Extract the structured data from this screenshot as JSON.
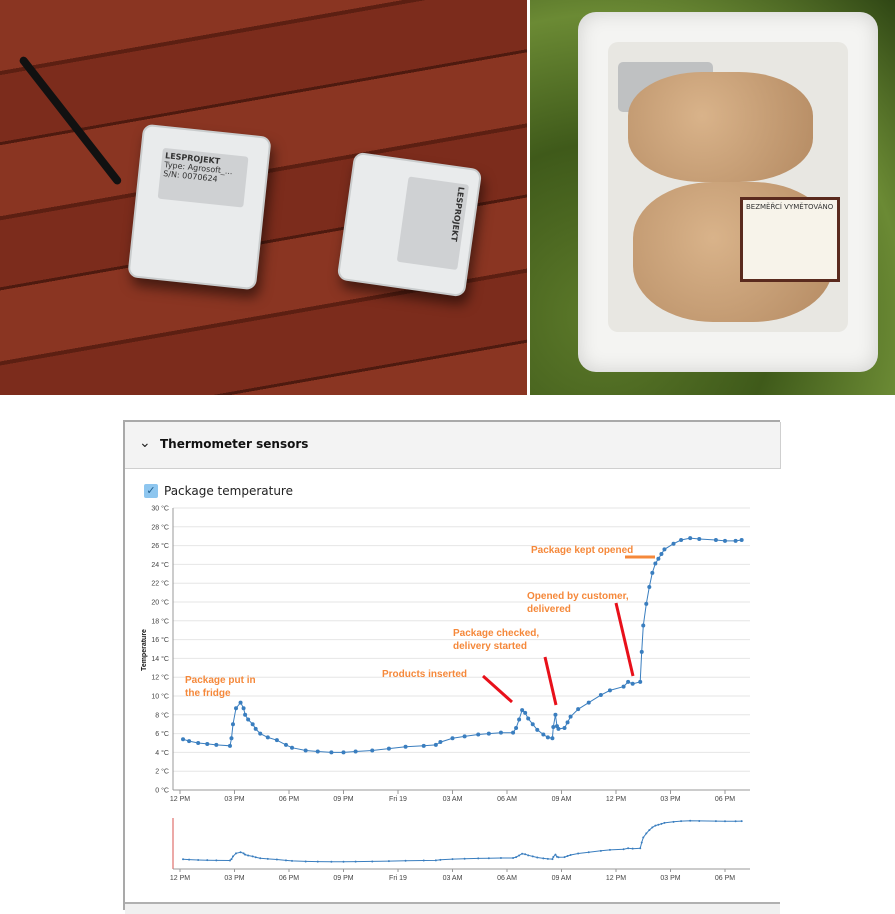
{
  "photos": {
    "left": {
      "device_brand": "LESPROJEKT",
      "device_type": "Type: Agrosoft_...",
      "device_sn": "S/N: 0070624"
    },
    "right": {
      "product_label": "BEZMĚŘCÍ VYMĚTOVÁNO"
    }
  },
  "panel": {
    "title": "Thermometer sensors",
    "collapse_icon": "chevron-down-icon"
  },
  "legend": {
    "label": "Package temperature",
    "checked": true,
    "checkbox_color": "#8ec6ef"
  },
  "annotations": {
    "fridge": [
      "Package put in",
      "the fridge"
    ],
    "inserted": "Products inserted",
    "checked": [
      "Package checked,",
      "delivery started"
    ],
    "opened": [
      "Opened by customer,",
      "delivered"
    ],
    "kept": "Package kept opened",
    "text_color": "#f5883a",
    "arrow_color": "#e8101a"
  },
  "chart_data": {
    "type": "line",
    "title": "",
    "xlabel": "",
    "ylabel": "Temperature",
    "ylim": [
      0,
      30
    ],
    "yticks": [
      "0 °C",
      "2 °C",
      "4 °C",
      "6 °C",
      "8 °C",
      "10 °C",
      "12 °C",
      "14 °C",
      "16 °C",
      "18 °C",
      "20 °C",
      "22 °C",
      "24 °C",
      "26 °C",
      "28 °C",
      "30 °C"
    ],
    "xlim": [
      "Thu 12:00",
      "Fri 19:30"
    ],
    "xticks": [
      "12 PM",
      "03 PM",
      "06 PM",
      "09 PM",
      "Fri 19",
      "03 AM",
      "06 AM",
      "09 AM",
      "12 PM",
      "03 PM",
      "06 PM"
    ],
    "grid": true,
    "series_color": "#3a7ebf",
    "series": [
      {
        "name": "Package temperature",
        "points": [
          [
            "Thu 12:10",
            5.4
          ],
          [
            "Thu 12:30",
            5.2
          ],
          [
            "Thu 13:00",
            5.0
          ],
          [
            "Thu 13:30",
            4.9
          ],
          [
            "Thu 14:00",
            4.8
          ],
          [
            "Thu 14:45",
            4.7
          ],
          [
            "Thu 14:50",
            5.5
          ],
          [
            "Thu 14:55",
            7.0
          ],
          [
            "Thu 15:05",
            8.7
          ],
          [
            "Thu 15:20",
            9.3
          ],
          [
            "Thu 15:30",
            8.7
          ],
          [
            "Thu 15:35",
            8.0
          ],
          [
            "Thu 15:45",
            7.5
          ],
          [
            "Thu 16:00",
            7.0
          ],
          [
            "Thu 16:10",
            6.5
          ],
          [
            "Thu 16:25",
            6.0
          ],
          [
            "Thu 16:50",
            5.6
          ],
          [
            "Thu 17:20",
            5.3
          ],
          [
            "Thu 17:50",
            4.8
          ],
          [
            "Thu 18:10",
            4.5
          ],
          [
            "Thu 18:55",
            4.2
          ],
          [
            "Thu 19:35",
            4.1
          ],
          [
            "Thu 20:20",
            4.0
          ],
          [
            "Thu 21:00",
            4.0
          ],
          [
            "Thu 21:40",
            4.1
          ],
          [
            "Thu 22:35",
            4.2
          ],
          [
            "Thu 23:30",
            4.4
          ],
          [
            "Fri 00:25",
            4.6
          ],
          [
            "Fri 01:25",
            4.7
          ],
          [
            "Fri 02:05",
            4.8
          ],
          [
            "Fri 02:20",
            5.1
          ],
          [
            "Fri 03:00",
            5.5
          ],
          [
            "Fri 03:40",
            5.7
          ],
          [
            "Fri 04:25",
            5.9
          ],
          [
            "Fri 05:00",
            6.0
          ],
          [
            "Fri 05:40",
            6.1
          ],
          [
            "Fri 06:20",
            6.1
          ],
          [
            "Fri 06:30",
            6.6
          ],
          [
            "Fri 06:40",
            7.5
          ],
          [
            "Fri 06:50",
            8.5
          ],
          [
            "Fri 07:00",
            8.2
          ],
          [
            "Fri 07:10",
            7.6
          ],
          [
            "Fri 07:25",
            7.0
          ],
          [
            "Fri 07:40",
            6.4
          ],
          [
            "Fri 08:00",
            5.9
          ],
          [
            "Fri 08:15",
            5.6
          ],
          [
            "Fri 08:30",
            5.5
          ],
          [
            "Fri 08:33",
            6.7
          ],
          [
            "Fri 08:40",
            8.0
          ],
          [
            "Fri 08:45",
            6.8
          ],
          [
            "Fri 08:50",
            6.5
          ],
          [
            "Fri 09:10",
            6.6
          ],
          [
            "Fri 09:20",
            7.2
          ],
          [
            "Fri 09:30",
            7.8
          ],
          [
            "Fri 09:55",
            8.6
          ],
          [
            "Fri 10:30",
            9.3
          ],
          [
            "Fri 11:10",
            10.1
          ],
          [
            "Fri 11:40",
            10.6
          ],
          [
            "Fri 12:25",
            11.0
          ],
          [
            "Fri 12:40",
            11.5
          ],
          [
            "Fri 12:55",
            11.3
          ],
          [
            "Fri 13:20",
            11.5
          ],
          [
            "Fri 13:25",
            14.7
          ],
          [
            "Fri 13:30",
            17.5
          ],
          [
            "Fri 13:40",
            19.8
          ],
          [
            "Fri 13:50",
            21.6
          ],
          [
            "Fri 14:00",
            23.1
          ],
          [
            "Fri 14:10",
            24.1
          ],
          [
            "Fri 14:20",
            24.6
          ],
          [
            "Fri 14:30",
            25.1
          ],
          [
            "Fri 14:40",
            25.6
          ],
          [
            "Fri 15:10",
            26.2
          ],
          [
            "Fri 15:35",
            26.6
          ],
          [
            "Fri 16:05",
            26.8
          ],
          [
            "Fri 16:35",
            26.7
          ],
          [
            "Fri 17:30",
            26.6
          ],
          [
            "Fri 18:00",
            26.5
          ],
          [
            "Fri 18:35",
            26.5
          ],
          [
            "Fri 18:55",
            26.6
          ]
        ]
      }
    ]
  }
}
